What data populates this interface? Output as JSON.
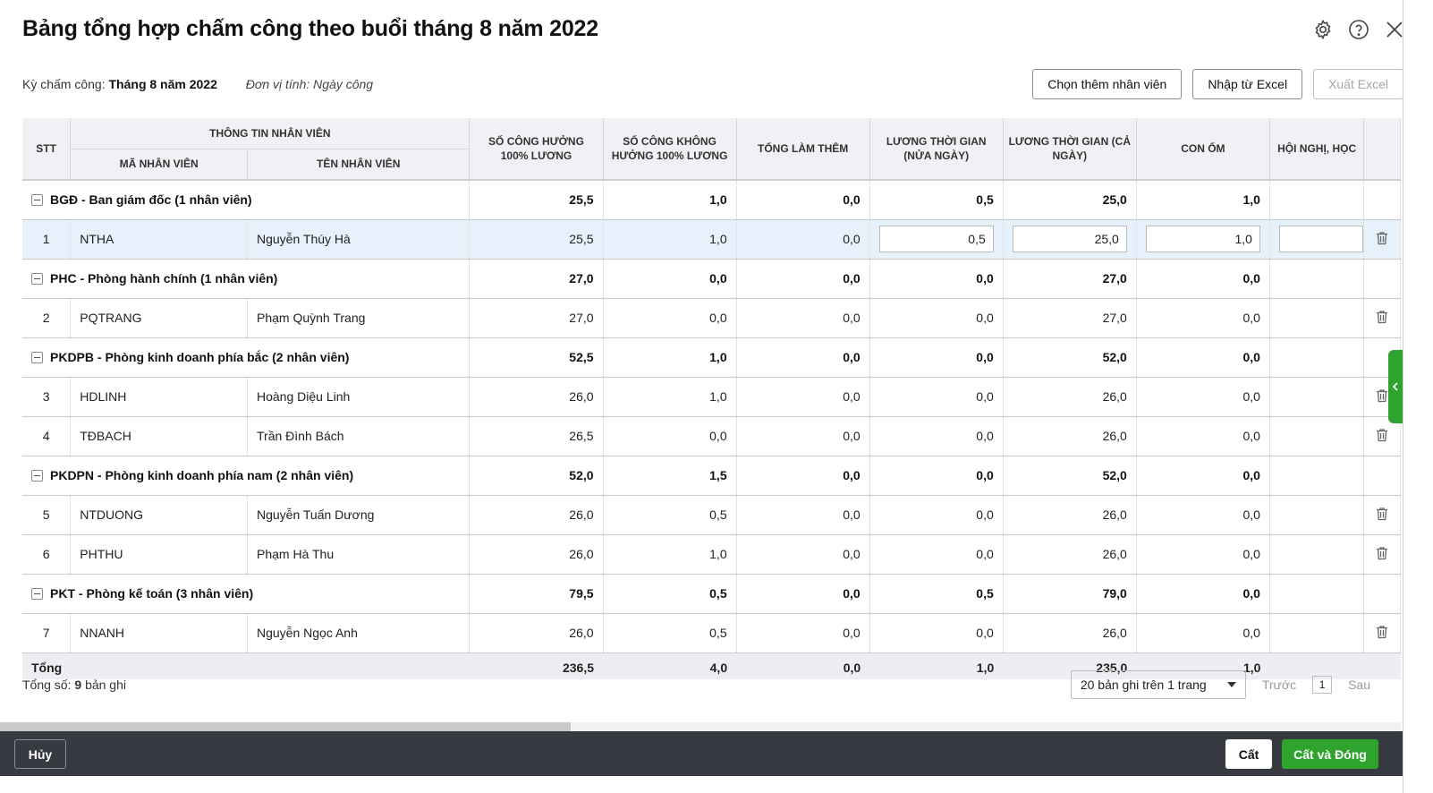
{
  "title": "Bảng tổng hợp chấm công theo buổi tháng 8 năm 2022",
  "meta": {
    "period_label": "Kỳ chấm công:",
    "period_value": "Tháng 8 năm 2022",
    "unit": "Đơn vị tính: Ngày công"
  },
  "header_icons": [
    "gear-icon",
    "help-icon",
    "close-icon"
  ],
  "actions": {
    "add_employee": "Chọn thêm nhân viên",
    "import_excel": "Nhập từ Excel",
    "export_excel": "Xuất Excel"
  },
  "columns": {
    "stt": "STT",
    "employee_info": "THÔNG TIN NHÂN VIÊN",
    "emp_code": "MÃ NHÂN VIÊN",
    "emp_name": "TÊN NHÂN VIÊN",
    "full_paid": "SỐ CÔNG HƯỞNG 100% LƯƠNG",
    "not_full_paid": "SỐ CÔNG KHÔNG HƯỞNG 100% LƯƠNG",
    "overtime": "TỔNG LÀM THÊM",
    "half_day": "LƯƠNG THỜI GIAN (NỬA NGÀY)",
    "full_day": "LƯƠNG THỜI GIAN (CẢ NGÀY)",
    "sick": "CON ỐM",
    "meeting": "HỘI NGHỊ, HỌC"
  },
  "groups": [
    {
      "name": "BGĐ - Ban giám đốc (1 nhân viên)",
      "totals": [
        "25,5",
        "1,0",
        "0,0",
        "0,5",
        "25,0",
        "1,0"
      ],
      "rows": [
        {
          "stt": "1",
          "code": "NTHA",
          "name": "Nguyễn Thúy Hà",
          "vals": [
            "25,5",
            "1,0",
            "0,0",
            "0,5",
            "25,0",
            "1,0"
          ],
          "meeting": ""
        }
      ]
    },
    {
      "name": "PHC - Phòng hành chính (1 nhân viên)",
      "totals": [
        "27,0",
        "0,0",
        "0,0",
        "0,0",
        "27,0",
        "0,0"
      ],
      "rows": [
        {
          "stt": "2",
          "code": "PQTRANG",
          "name": "Phạm Quỳnh Trang",
          "vals": [
            "27,0",
            "0,0",
            "0,0",
            "0,0",
            "27,0",
            "0,0"
          ]
        }
      ]
    },
    {
      "name": "PKDPB - Phòng kinh doanh phía bắc (2 nhân viên)",
      "totals": [
        "52,5",
        "1,0",
        "0,0",
        "0,0",
        "52,0",
        "0,0"
      ],
      "rows": [
        {
          "stt": "3",
          "code": "HDLINH",
          "name": "Hoàng Diệu Linh",
          "vals": [
            "26,0",
            "1,0",
            "0,0",
            "0,0",
            "26,0",
            "0,0"
          ]
        },
        {
          "stt": "4",
          "code": "TĐBACH",
          "name": "Trần Đình Bách",
          "vals": [
            "26,5",
            "0,0",
            "0,0",
            "0,0",
            "26,0",
            "0,0"
          ]
        }
      ]
    },
    {
      "name": "PKDPN - Phòng kinh doanh phía nam (2 nhân viên)",
      "totals": [
        "52,0",
        "1,5",
        "0,0",
        "0,0",
        "52,0",
        "0,0"
      ],
      "rows": [
        {
          "stt": "5",
          "code": "NTDUONG",
          "name": "Nguyễn Tuấn Dương",
          "vals": [
            "26,0",
            "0,5",
            "0,0",
            "0,0",
            "26,0",
            "0,0"
          ]
        },
        {
          "stt": "6",
          "code": "PHTHU",
          "name": "Phạm Hà Thu",
          "vals": [
            "26,0",
            "1,0",
            "0,0",
            "0,0",
            "26,0",
            "0,0"
          ]
        }
      ]
    },
    {
      "name": "PKT - Phòng kế toán (3 nhân viên)",
      "totals": [
        "79,5",
        "0,5",
        "0,0",
        "0,5",
        "79,0",
        "0,0"
      ],
      "rows": [
        {
          "stt": "7",
          "code": "NNANH",
          "name": "Nguyễn Ngọc Anh",
          "vals": [
            "26,0",
            "0,5",
            "0,0",
            "0,0",
            "26,0",
            "0,0"
          ]
        }
      ]
    }
  ],
  "total": {
    "label": "Tổng",
    "vals": [
      "236,5",
      "4,0",
      "0,0",
      "1,0",
      "235,0",
      "1,0"
    ]
  },
  "footer": {
    "count_prefix": "Tổng số:",
    "count_value": "9",
    "count_suffix": "bản ghi",
    "page_size": "20 bản ghi trên 1 trang",
    "prev": "Trước",
    "page": "1",
    "next": "Sau"
  },
  "bottom": {
    "cancel": "Hủy",
    "save": "Cất",
    "save_close": "Cất và Đóng"
  },
  "colors": {
    "accent_green": "#2ea42e",
    "selected_row": "#e6f1fc",
    "bottom_bar": "#373a40"
  }
}
